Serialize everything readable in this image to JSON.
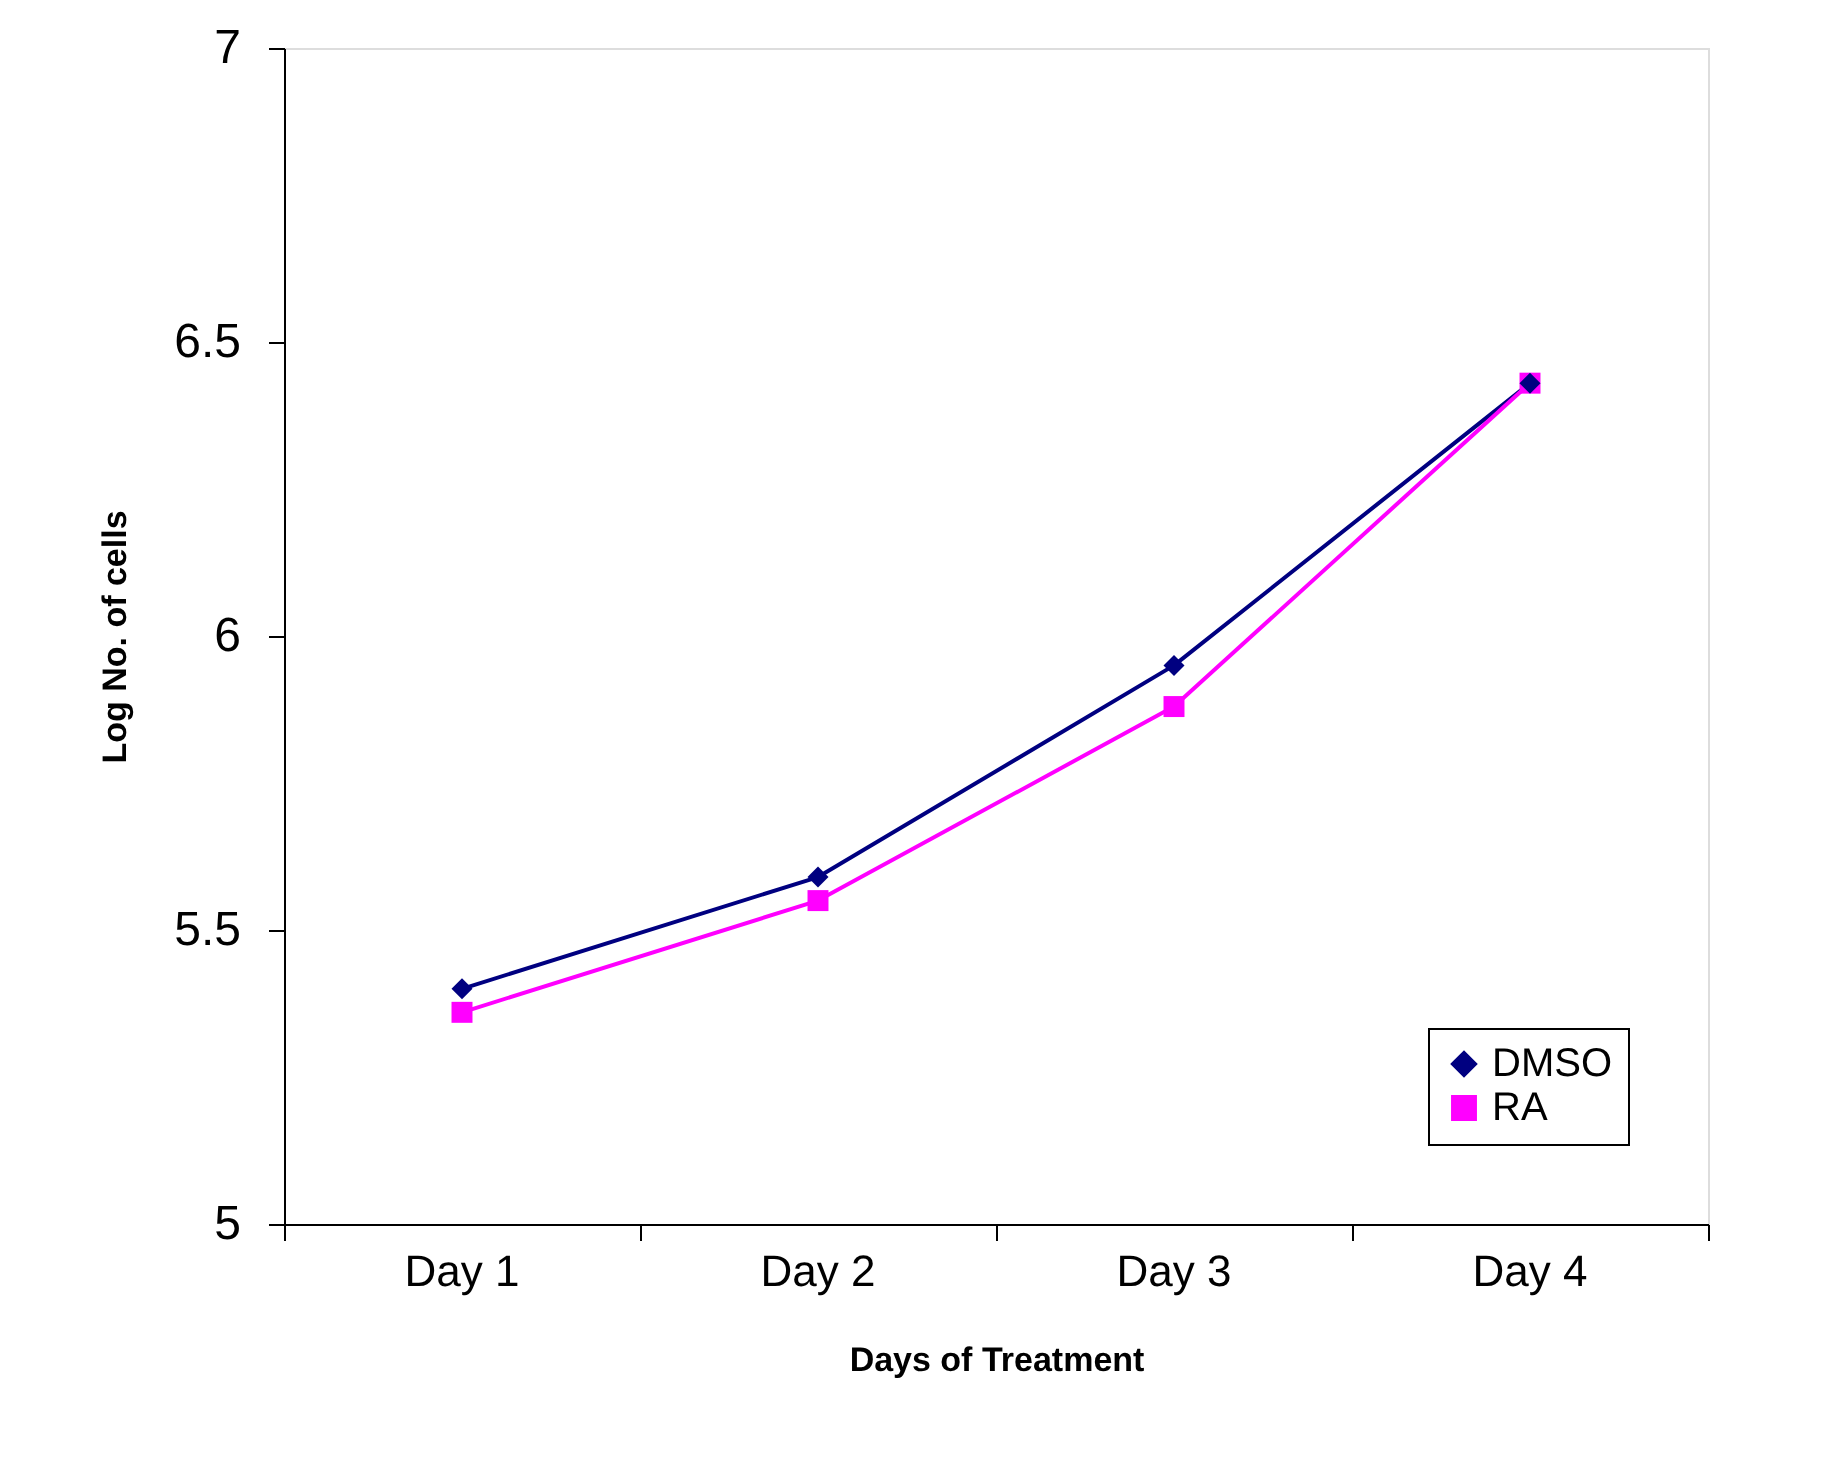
{
  "chart_data": {
    "type": "line",
    "xlabel": "Days of Treatment",
    "ylabel": "Log No. of cells",
    "categories": [
      "Day 1",
      "Day 2",
      "Day 3",
      "Day 4"
    ],
    "series": [
      {
        "name": "DMSO",
        "color": "#000080",
        "marker": "diamond",
        "values": [
          5.4,
          5.59,
          5.95,
          6.43
        ]
      },
      {
        "name": "RA",
        "color": "#ff00ff",
        "marker": "square",
        "values": [
          5.36,
          5.55,
          5.88,
          6.43
        ]
      }
    ],
    "ylim": [
      5,
      7
    ],
    "yticks": [
      5,
      5.5,
      6,
      6.5,
      7
    ],
    "grid": false,
    "legend": "bottom right",
    "line_style": "solid"
  }
}
